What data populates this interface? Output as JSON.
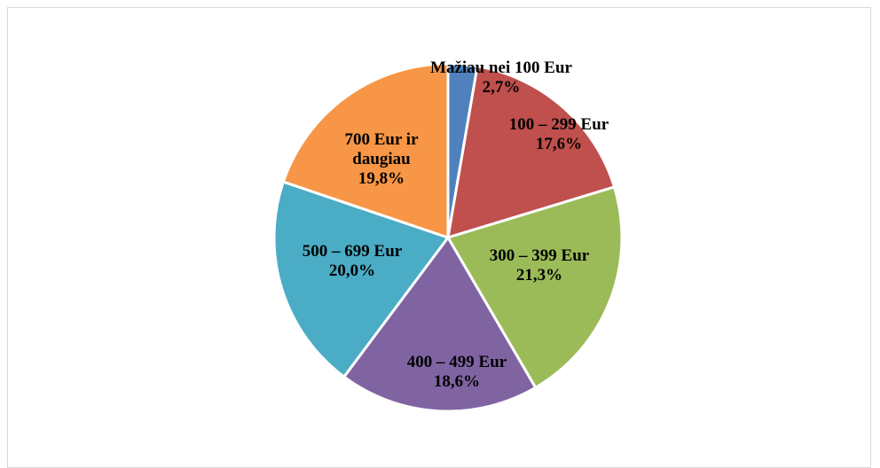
{
  "chart_data": {
    "type": "pie",
    "categories": [
      "Mažiau nei 100 Eur",
      "100 – 299 Eur",
      "300 – 399 Eur",
      "400 – 499 Eur",
      "500 – 699 Eur",
      "700 Eur ir daugiau"
    ],
    "values": [
      2.7,
      17.6,
      21.3,
      18.6,
      20.0,
      19.8
    ],
    "value_labels": [
      "2,7%",
      "17,6%",
      "21,3%",
      "18,6%",
      "20,0%",
      "19,8%"
    ],
    "colors": [
      "#4f81bd",
      "#c0504d",
      "#9bbb59",
      "#8064a2",
      "#4bacc6",
      "#f79646"
    ]
  }
}
